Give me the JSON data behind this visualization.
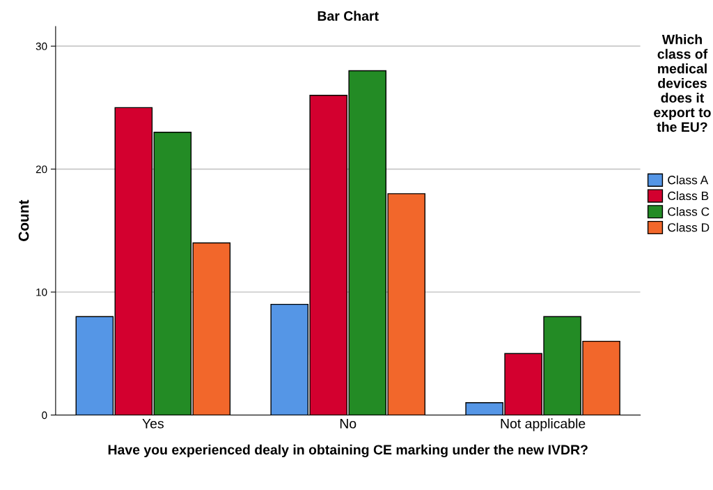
{
  "chart_data": {
    "type": "bar",
    "title": "Bar Chart",
    "xlabel": "Have you experienced dealy in obtaining CE marking under the new IVDR?",
    "ylabel": "Count",
    "legend_title": "Which class of medical devices does it export to the EU?",
    "categories": [
      "Yes",
      "No",
      "Not applicable"
    ],
    "series": [
      {
        "name": "Class A",
        "color": "#5596e6",
        "values": [
          8,
          9,
          1
        ]
      },
      {
        "name": "Class B",
        "color": "#d3002f",
        "values": [
          25,
          26,
          5
        ]
      },
      {
        "name": "Class C",
        "color": "#238b25",
        "values": [
          23,
          28,
          8
        ]
      },
      {
        "name": "Class D",
        "color": "#f2672b",
        "values": [
          14,
          18,
          6
        ]
      }
    ],
    "ylim": [
      0,
      31.6
    ],
    "yticks": [
      0,
      10,
      20,
      30
    ],
    "grid": "y",
    "legend": "right"
  }
}
